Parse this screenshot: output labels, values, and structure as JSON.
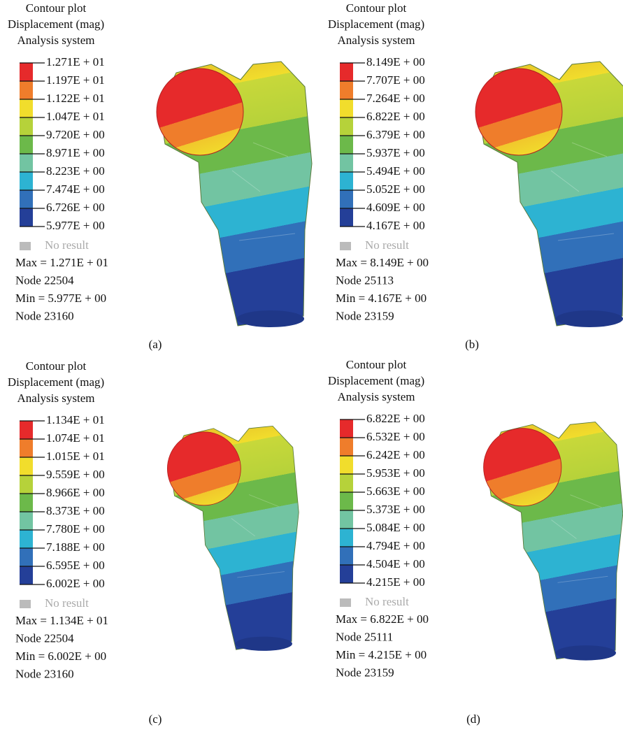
{
  "colors": [
    "#e62a2b",
    "#ef7d2b",
    "#f1dd2c",
    "#b6d23a",
    "#6cb94a",
    "#72c4a2",
    "#2db3d2",
    "#3170b9",
    "#243f98"
  ],
  "panels": [
    {
      "title": [
        "Contour plot",
        "Displacement (mag)",
        "Analysis system"
      ],
      "legend": [
        "1.271E + 01",
        "1.197E + 01",
        "1.122E + 01",
        "1.047E + 01",
        "9.720E + 00",
        "8.971E + 00",
        "8.223E + 00",
        "7.474E + 00",
        "6.726E + 00",
        "5.977E + 00"
      ],
      "no_result": "No result",
      "max": "Max = 1.271E + 01",
      "max_node": "Node 22504",
      "min": "Min = 5.977E + 00",
      "min_node": "Node 23160",
      "caption": "(a)"
    },
    {
      "title": [
        "Contour plot",
        "Displacement (mag)",
        "Analysis system"
      ],
      "legend": [
        "8.149E + 00",
        "7.707E + 00",
        "7.264E + 00",
        "6.822E + 00",
        "6.379E + 00",
        "5.937E + 00",
        "5.494E + 00",
        "5.052E + 00",
        "4.609E + 00",
        "4.167E + 00"
      ],
      "no_result": "No result",
      "max": "Max = 8.149E + 00",
      "max_node": "Node 25113",
      "min": "Min = 4.167E + 00",
      "min_node": "Node 23159",
      "caption": "(b)"
    },
    {
      "title": [
        "Contour plot",
        "Displacement (mag)",
        "Analysis system"
      ],
      "legend": [
        "1.134E + 01",
        "1.074E + 01",
        "1.015E + 01",
        "9.559E + 00",
        "8.966E + 00",
        "8.373E + 00",
        "7.780E + 00",
        "7.188E + 00",
        "6.595E + 00",
        "6.002E + 00"
      ],
      "no_result": "No result",
      "max": "Max = 1.134E + 01",
      "max_node": "Node 22504",
      "min": "Min = 6.002E + 00",
      "min_node": "Node 23160",
      "caption": "(c)"
    },
    {
      "title": [
        "Contour plot",
        "Displacement (mag)",
        "Analysis system"
      ],
      "legend": [
        "6.822E + 00",
        "6.532E + 00",
        "6.242E + 00",
        "5.953E + 00",
        "5.663E + 00",
        "5.373E + 00",
        "5.084E + 00",
        "4.794E + 00",
        "4.504E + 00",
        "4.215E + 00"
      ],
      "no_result": "No result",
      "max": "Max = 6.822E + 00",
      "max_node": "Node 25111",
      "min": "Min = 4.215E + 00",
      "min_node": "Node 23159",
      "caption": "(d)"
    }
  ]
}
